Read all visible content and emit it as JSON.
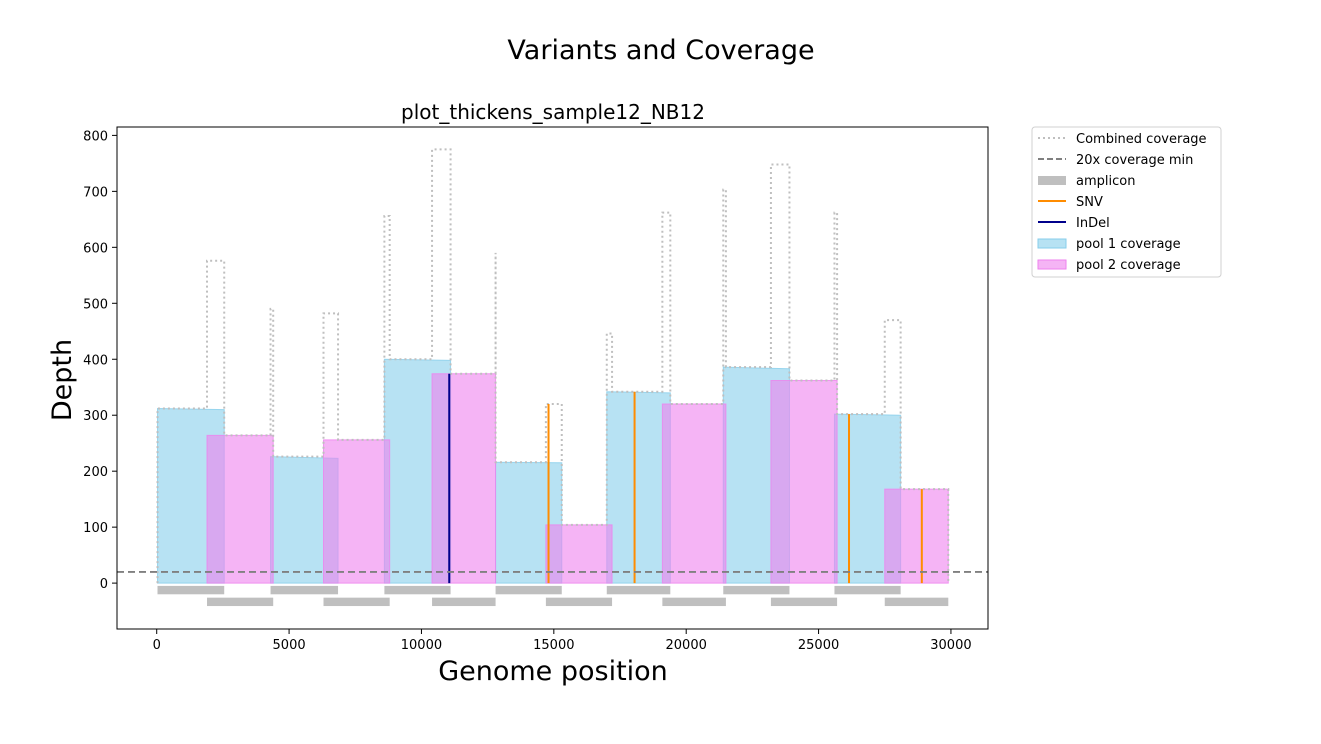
{
  "chart_data": {
    "type": "area",
    "suptitle": "Variants and Coverage",
    "title": "plot_thickens_sample12_NB12",
    "xlabel": "Genome position",
    "ylabel": "Depth",
    "xlim": [
      -1500,
      31400
    ],
    "ylim": [
      -82,
      815
    ],
    "xticks": [
      0,
      5000,
      10000,
      15000,
      20000,
      25000,
      30000
    ],
    "yticks": [
      0,
      100,
      200,
      300,
      400,
      500,
      600,
      700,
      800
    ],
    "grid": false,
    "legend_position": "outside-top-right",
    "legend": [
      {
        "label": "Combined coverage",
        "kind": "dotted-line",
        "color": "#bfbfbf"
      },
      {
        "label": "20x coverage min",
        "kind": "dashed-line",
        "color": "#808080"
      },
      {
        "label": "amplicon",
        "kind": "patch",
        "color": "#bfbfbf"
      },
      {
        "label": "SNV",
        "kind": "line",
        "color": "#ff8c00"
      },
      {
        "label": "InDel",
        "kind": "line",
        "color": "#00008b"
      },
      {
        "label": "pool 1 coverage",
        "kind": "patch",
        "color": "#87ceeb"
      },
      {
        "label": "pool 2 coverage",
        "kind": "patch",
        "color": "#ee82ee"
      }
    ],
    "threshold": {
      "value": 20,
      "label": "20x coverage min"
    },
    "series": [
      {
        "name": "pool 1 coverage",
        "color": "#87ceeb",
        "amplicons": [
          {
            "start": 30,
            "end": 2550,
            "depth": 312,
            "end_depth": 310
          },
          {
            "start": 4300,
            "end": 6850,
            "depth": 226,
            "end_depth": 223
          },
          {
            "start": 8600,
            "end": 11100,
            "depth": 400,
            "end_depth": 398
          },
          {
            "start": 12800,
            "end": 15300,
            "depth": 216,
            "end_depth": 215
          },
          {
            "start": 17000,
            "end": 19400,
            "depth": 342,
            "end_depth": 340
          },
          {
            "start": 21400,
            "end": 23900,
            "depth": 386,
            "end_depth": 383
          },
          {
            "start": 25600,
            "end": 28100,
            "depth": 302,
            "end_depth": 300
          }
        ]
      },
      {
        "name": "pool 2 coverage",
        "color": "#ee82ee",
        "amplicons": [
          {
            "start": 1900,
            "end": 4400,
            "depth": 264,
            "end_depth": 264
          },
          {
            "start": 6300,
            "end": 8800,
            "depth": 256,
            "end_depth": 256
          },
          {
            "start": 10400,
            "end": 12800,
            "depth": 374,
            "end_depth": 374
          },
          {
            "start": 14700,
            "end": 17200,
            "depth": 104,
            "end_depth": 104
          },
          {
            "start": 19100,
            "end": 21500,
            "depth": 320,
            "end_depth": 320
          },
          {
            "start": 23200,
            "end": 25700,
            "depth": 362,
            "end_depth": 362
          },
          {
            "start": 27500,
            "end": 29900,
            "depth": 168,
            "end_depth": 168
          }
        ]
      }
    ],
    "combined_coverage": [
      [
        30,
        0
      ],
      [
        30,
        312
      ],
      [
        1900,
        312
      ],
      [
        1900,
        576
      ],
      [
        2550,
        576
      ],
      [
        2550,
        264
      ],
      [
        4300,
        264
      ],
      [
        4300,
        490
      ],
      [
        4400,
        490
      ],
      [
        4400,
        226
      ],
      [
        6300,
        226
      ],
      [
        6300,
        482
      ],
      [
        6850,
        482
      ],
      [
        6850,
        256
      ],
      [
        8600,
        256
      ],
      [
        8600,
        656
      ],
      [
        8800,
        656
      ],
      [
        8800,
        400
      ],
      [
        10400,
        400
      ],
      [
        10400,
        775
      ],
      [
        11100,
        775
      ],
      [
        11100,
        374
      ],
      [
        12800,
        374
      ],
      [
        12800,
        590
      ],
      [
        12800,
        216
      ],
      [
        14700,
        216
      ],
      [
        14700,
        320
      ],
      [
        15300,
        320
      ],
      [
        15300,
        104
      ],
      [
        17000,
        104
      ],
      [
        17000,
        446
      ],
      [
        17200,
        446
      ],
      [
        17200,
        342
      ],
      [
        19100,
        342
      ],
      [
        19100,
        662
      ],
      [
        19400,
        662
      ],
      [
        19400,
        320
      ],
      [
        21400,
        320
      ],
      [
        21400,
        703
      ],
      [
        21500,
        703
      ],
      [
        21500,
        386
      ],
      [
        23200,
        386
      ],
      [
        23200,
        748
      ],
      [
        23900,
        748
      ],
      [
        23900,
        362
      ],
      [
        25600,
        362
      ],
      [
        25600,
        662
      ],
      [
        25700,
        662
      ],
      [
        25700,
        302
      ],
      [
        27500,
        302
      ],
      [
        27500,
        470
      ],
      [
        28100,
        470
      ],
      [
        28100,
        168
      ],
      [
        29900,
        168
      ],
      [
        29900,
        0
      ]
    ],
    "amplicon_tracks": {
      "color": "#bfbfbf",
      "pool1": [
        [
          30,
          2550
        ],
        [
          4300,
          6850
        ],
        [
          8600,
          11100
        ],
        [
          12800,
          15300
        ],
        [
          17000,
          19400
        ],
        [
          21400,
          23900
        ],
        [
          25600,
          28100
        ]
      ],
      "pool2": [
        [
          1900,
          4400
        ],
        [
          6300,
          8800
        ],
        [
          10400,
          12800
        ],
        [
          14700,
          17200
        ],
        [
          19100,
          21500
        ],
        [
          23200,
          25700
        ],
        [
          27500,
          29900
        ]
      ]
    },
    "variants": [
      {
        "type": "InDel",
        "position": 11050,
        "depth": 374,
        "color": "#00008b"
      },
      {
        "type": "SNV",
        "position": 14800,
        "depth": 320,
        "color": "#ff8c00"
      },
      {
        "type": "SNV",
        "position": 18050,
        "depth": 342,
        "color": "#ff8c00"
      },
      {
        "type": "SNV",
        "position": 26150,
        "depth": 302,
        "color": "#ff8c00"
      },
      {
        "type": "SNV",
        "position": 28900,
        "depth": 168,
        "color": "#ff8c00"
      }
    ]
  }
}
